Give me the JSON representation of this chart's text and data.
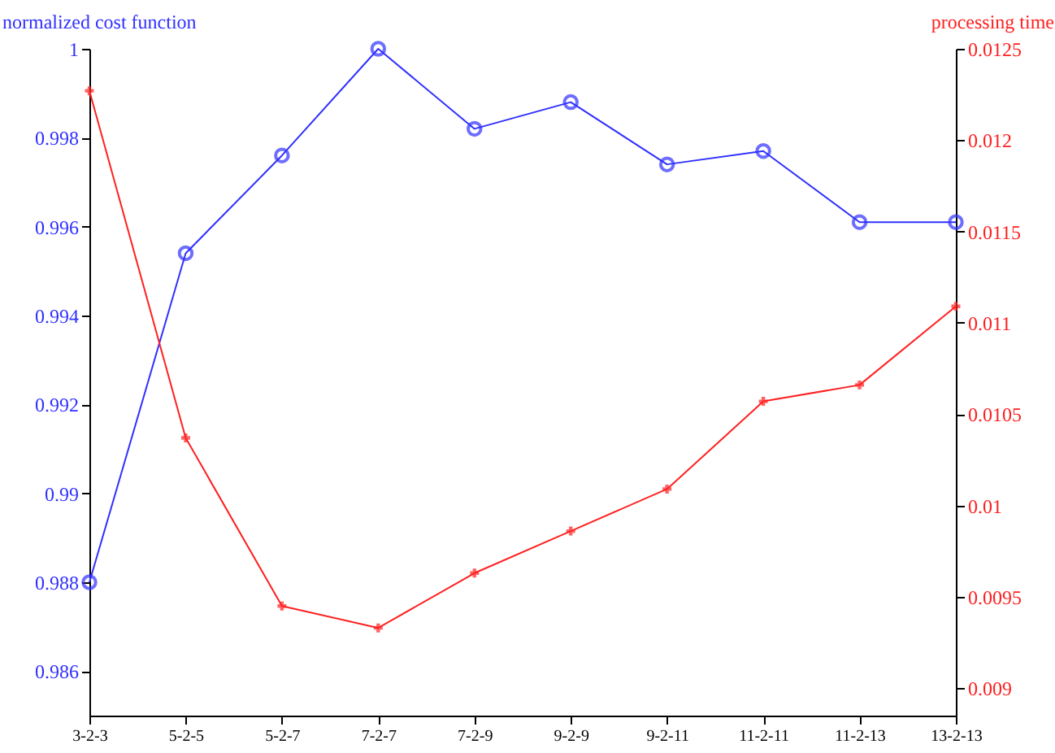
{
  "chart_data": {
    "type": "line",
    "ylabel": "normalized cost function",
    "y2label": "processing time",
    "categories": [
      "3-2-3",
      "5-2-5",
      "5-2-7",
      "7-2-7",
      "7-2-9",
      "9-2-9",
      "9-2-11",
      "11-2-11",
      "11-2-13",
      "13-2-13"
    ],
    "series": [
      {
        "color": "#3030ff",
        "marker": "circle",
        "values": [
          0.988,
          0.9954,
          0.9976,
          1.0,
          0.9982,
          0.9988,
          0.9974,
          0.9977,
          0.9961,
          0.9961
        ]
      },
      {
        "color": "#ff2020",
        "marker": "cross",
        "axis": "y2",
        "values": [
          0.01227,
          0.01037,
          0.00945,
          0.00933,
          0.00963,
          0.00986,
          0.01009,
          0.01057,
          0.01066,
          0.01109
        ]
      }
    ],
    "ylim": [
      0.985,
      1
    ],
    "yticks": [
      0.986,
      0.988,
      0.99,
      0.992,
      0.994,
      0.996,
      0.998,
      1
    ],
    "y2lim": [
      0.00885,
      0.0125
    ],
    "y2ticks": [
      0.009,
      0.0095,
      0.01,
      0.0105,
      0.011,
      0.0115,
      0.012,
      0.0125
    ],
    "grid": false,
    "legend": false
  }
}
